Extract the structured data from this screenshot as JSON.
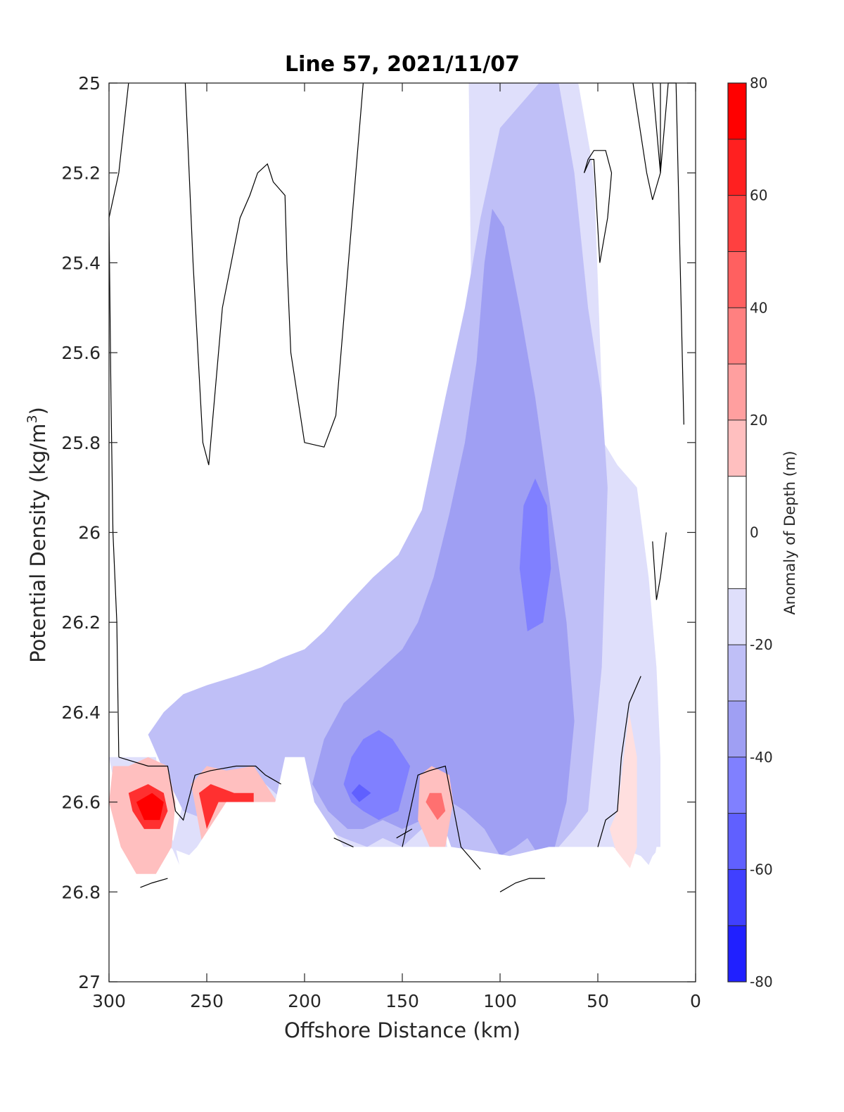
{
  "chart_data": {
    "type": "contourf",
    "title": "Line 57, 2021/11/07",
    "xlabel": "Offshore Distance (km)",
    "ylabel_main": "Potential Density (kg/m",
    "ylabel_sup": "3",
    "ylabel_close": ")",
    "xlim": [
      300,
      0
    ],
    "ylim": [
      25,
      27
    ],
    "y_reversed": true,
    "x_reversed": true,
    "xticks": [
      "300",
      "250",
      "200",
      "150",
      "100",
      "50",
      "0"
    ],
    "xtick_values": [
      300,
      250,
      200,
      150,
      100,
      50,
      0
    ],
    "yticks": [
      "25",
      "25.2",
      "25.4",
      "25.6",
      "25.8",
      "26",
      "26.2",
      "26.4",
      "26.6",
      "26.8",
      "27"
    ],
    "ytick_values": [
      25,
      25.2,
      25.4,
      25.6,
      25.8,
      26,
      26.2,
      26.4,
      26.6,
      26.8,
      27
    ],
    "zero_contour": "black line",
    "colorbar": {
      "label": "Anomaly of Depth (m)",
      "ticks": [
        "80",
        "60",
        "40",
        "20",
        "0",
        "-20",
        "-40",
        "-60",
        "-80"
      ],
      "tick_values": [
        80,
        60,
        40,
        20,
        0,
        -20,
        -40,
        -60,
        -80
      ],
      "levels": [
        80,
        70,
        60,
        50,
        40,
        30,
        20,
        10,
        -10,
        -20,
        -30,
        -40,
        -50,
        -60,
        -70,
        -80
      ],
      "colors": [
        "#ff0000",
        "#ff2020",
        "#ff4040",
        "#ff6060",
        "#ff8080",
        "#ff9f9f",
        "#ffbfbf",
        "#ffdfdf",
        "#ffffff",
        "#dfdffb",
        "#bfbff7",
        "#9f9ff3",
        "#8080ff",
        "#6060ff",
        "#4040ff",
        "#2020ff",
        "#0000ff"
      ]
    },
    "regions": [
      {
        "name": "band-10-20",
        "color": "#dfdffb",
        "x": [
          300,
          276,
          270,
          266,
          264,
          268,
          262,
          250,
          240,
          232,
          224,
          215,
          205,
          195,
          185,
          172,
          165,
          160,
          150,
          140,
          134,
          127,
          120,
          116,
          112,
          116,
          90,
          60,
          52,
          47,
          40,
          30,
          24,
          20,
          18,
          18,
          22,
          24,
          28,
          40,
          50,
          60,
          70,
          80,
          100,
          150,
          200,
          240,
          270,
          290,
          300
        ],
        "y": [
          26.5,
          26.5,
          26.66,
          26.7,
          26.74,
          26.7,
          26.6,
          26.58,
          26.58,
          26.6,
          26.52,
          26.52,
          26.5,
          26.6,
          26.58,
          26.64,
          26.66,
          26.64,
          26.66,
          26.6,
          26.5,
          26.7,
          26.7,
          26.68,
          26.6,
          25.0,
          25.0,
          25.0,
          25.2,
          25.8,
          25.85,
          25.9,
          26.1,
          26.3,
          26.5,
          26.7,
          26.72,
          26.74,
          26.72,
          26.7,
          26.72,
          26.7,
          26.72,
          26.72,
          26.74,
          26.72,
          26.72,
          26.75,
          26.7,
          26.72,
          26.5
        ]
      },
      {
        "name": "band-20-30",
        "color": "#bfbff7",
        "x": [
          280,
          270,
          262,
          250,
          238,
          230,
          220,
          210,
          200,
          190,
          180,
          168,
          160,
          150,
          140,
          133,
          125,
          120,
          110,
          100,
          90,
          80,
          70,
          62,
          55,
          48,
          45,
          48,
          55,
          62,
          70,
          80,
          90,
          100,
          110,
          118,
          128,
          140,
          152,
          165,
          178,
          190,
          200,
          212,
          222,
          235,
          250,
          262,
          272,
          280
        ],
        "y": [
          26.45,
          26.55,
          26.62,
          26.64,
          26.62,
          26.58,
          26.56,
          26.6,
          26.62,
          26.66,
          26.68,
          26.7,
          26.68,
          26.7,
          26.66,
          26.6,
          26.7,
          26.72,
          26.72,
          26.74,
          26.74,
          26.72,
          26.7,
          26.66,
          26.62,
          26.3,
          25.9,
          25.7,
          25.5,
          25.2,
          25.0,
          25.0,
          25.05,
          25.1,
          25.3,
          25.5,
          25.7,
          25.95,
          26.05,
          26.1,
          26.16,
          26.22,
          26.26,
          26.28,
          26.3,
          26.32,
          26.34,
          26.36,
          26.4,
          26.45
        ]
      },
      {
        "name": "band-30-40",
        "color": "#9f9ff3",
        "x": [
          196,
          188,
          178,
          170,
          160,
          150,
          140,
          132,
          125,
          118,
          108,
          100,
          92,
          86,
          80,
          72,
          66,
          62,
          66,
          74,
          82,
          90,
          98,
          104,
          108,
          112,
          118,
          126,
          134,
          142,
          150,
          160,
          170,
          180,
          190,
          196
        ],
        "y": [
          26.56,
          26.62,
          26.66,
          26.66,
          26.64,
          26.66,
          26.64,
          26.62,
          26.6,
          26.62,
          26.66,
          26.72,
          26.7,
          26.68,
          26.72,
          26.7,
          26.6,
          26.42,
          26.2,
          25.95,
          25.7,
          25.5,
          25.32,
          25.28,
          25.4,
          25.62,
          25.8,
          25.96,
          26.1,
          26.2,
          26.26,
          26.3,
          26.34,
          26.38,
          26.46,
          26.56
        ]
      },
      {
        "name": "band-40-50",
        "color": "#8080ff",
        "x": [
          170,
          162,
          152,
          146,
          155,
          162,
          170,
          176,
          180,
          176,
          170
        ],
        "y": [
          26.62,
          26.64,
          26.62,
          26.52,
          26.46,
          26.44,
          26.46,
          26.5,
          26.56,
          26.6,
          26.62
        ]
      },
      {
        "name": "band-40-50-core",
        "color": "#8080ff",
        "x": [
          86,
          78,
          74,
          76,
          82,
          88,
          90,
          86
        ],
        "y": [
          26.22,
          26.2,
          26.08,
          25.94,
          25.88,
          25.94,
          26.08,
          26.22
        ]
      },
      {
        "name": "band-50-60",
        "color": "#6060ff",
        "x": [
          172,
          166,
          172,
          176,
          172
        ],
        "y": [
          26.6,
          26.58,
          26.56,
          26.58,
          26.6
        ]
      },
      {
        "name": "band-pos-20-30",
        "color": "#ffbfbf",
        "x": [
          298,
          290,
          280,
          270,
          266,
          268,
          276,
          286,
          294,
          300,
          298
        ],
        "y": [
          26.52,
          26.52,
          26.5,
          26.52,
          26.6,
          26.7,
          26.76,
          26.76,
          26.7,
          26.6,
          26.52
        ]
      },
      {
        "name": "band-pos-60-70",
        "color": "#ff3030",
        "x": [
          290,
          280,
          272,
          270,
          274,
          282,
          288,
          290
        ],
        "y": [
          26.58,
          26.56,
          26.58,
          26.62,
          26.66,
          26.66,
          26.62,
          26.58
        ]
      },
      {
        "name": "band-pos-70-80",
        "color": "#ff0000",
        "x": [
          286,
          278,
          272,
          274,
          282,
          286
        ],
        "y": [
          26.6,
          26.58,
          26.6,
          26.64,
          26.64,
          26.6
        ]
      },
      {
        "name": "band-pos-250-outer",
        "color": "#ffbfbf",
        "x": [
          258,
          250,
          240,
          226,
          220,
          214,
          220,
          240,
          252,
          258
        ],
        "y": [
          26.56,
          26.52,
          26.53,
          26.52,
          26.56,
          26.6,
          26.6,
          26.6,
          26.7,
          26.56
        ]
      },
      {
        "name": "band-pos-250-inner",
        "color": "#ff3030",
        "x": [
          254,
          248,
          236,
          226,
          226,
          244,
          250,
          254
        ],
        "y": [
          26.58,
          26.56,
          26.58,
          26.58,
          26.6,
          26.6,
          26.66,
          26.58
        ]
      },
      {
        "name": "band-pos-135",
        "color": "#ffbfbf",
        "x": [
          141,
          135,
          126,
          124,
          128,
          136,
          142,
          141
        ],
        "y": [
          26.54,
          26.52,
          26.54,
          26.6,
          26.7,
          26.7,
          26.64,
          26.54
        ]
      },
      {
        "name": "band-pos-135-inner",
        "color": "#ff7070",
        "x": [
          136,
          130,
          128,
          132,
          138,
          136
        ],
        "y": [
          26.58,
          26.58,
          26.62,
          26.64,
          26.6,
          26.58
        ]
      },
      {
        "name": "band-pos-30",
        "color": "#ffdfdf",
        "x": [
          40,
          34,
          30,
          30,
          36,
          40,
          44,
          40
        ],
        "y": [
          26.62,
          26.4,
          26.5,
          26.7,
          26.78,
          26.72,
          26.66,
          26.62
        ]
      }
    ],
    "masks": [
      {
        "name": "mask-bottom",
        "x": [
          300,
          300,
          0,
          0,
          20,
          24,
          42,
          75,
          95,
          125,
          140,
          160,
          180,
          195,
          200,
          210,
          215,
          240,
          255,
          266,
          286,
          300
        ],
        "y": [
          26.76,
          27.0,
          27.0,
          26.7,
          26.7,
          26.8,
          26.7,
          26.7,
          26.72,
          26.7,
          26.7,
          26.7,
          26.7,
          26.6,
          26.5,
          26.5,
          26.6,
          26.6,
          26.7,
          26.75,
          26.78,
          26.76
        ]
      }
    ],
    "zero_contours": [
      {
        "x": [
          300,
          295,
          290
        ],
        "y": [
          25.3,
          25.2,
          25.0
        ]
      },
      {
        "x": [
          300,
          299,
          298,
          296,
          295,
          295
        ],
        "y": [
          25.3,
          25.7,
          26.0,
          26.2,
          26.5,
          26.5
        ]
      },
      {
        "x": [
          295,
          280,
          270,
          266,
          262,
          256,
          248,
          235,
          225,
          220,
          212
        ],
        "y": [
          26.5,
          26.52,
          26.52,
          26.62,
          26.64,
          26.54,
          26.53,
          26.52,
          26.52,
          26.54,
          26.56
        ]
      },
      {
        "x": [
          261,
          257,
          252,
          249,
          242,
          233,
          228,
          224,
          219,
          216,
          210,
          209,
          207,
          200,
          190,
          184,
          170
        ],
        "y": [
          25.0,
          25.4,
          25.8,
          25.85,
          25.5,
          25.3,
          25.25,
          25.2,
          25.18,
          25.22,
          25.25,
          25.4,
          25.6,
          25.8,
          25.81,
          25.74,
          25.0
        ]
      },
      {
        "x": [
          185,
          175
        ],
        "y": [
          26.68,
          26.7
        ]
      },
      {
        "x": [
          150,
          142,
          136,
          128,
          120,
          110
        ],
        "y": [
          26.7,
          26.54,
          26.53,
          26.52,
          26.7,
          26.75
        ]
      },
      {
        "x": [
          153,
          145
        ],
        "y": [
          26.68,
          26.66
        ]
      },
      {
        "x": [
          100,
          92,
          85,
          77
        ],
        "y": [
          26.8,
          26.78,
          26.77,
          26.77
        ]
      },
      {
        "x": [
          57,
          54,
          52,
          49,
          45,
          43,
          46,
          52,
          55,
          57
        ],
        "y": [
          25.2,
          25.17,
          25.17,
          25.4,
          25.3,
          25.2,
          25.15,
          25.15,
          25.17,
          25.2
        ]
      },
      {
        "x": [
          32,
          25,
          22,
          18,
          14,
          10,
          6
        ],
        "y": [
          25.0,
          25.2,
          25.26,
          25.2,
          25.0,
          25.0,
          25.76
        ]
      },
      {
        "x": [
          22,
          20,
          18,
          18
        ],
        "y": [
          25.0,
          25.1,
          25.2,
          25.0
        ]
      },
      {
        "x": [
          15,
          18,
          20,
          22
        ],
        "y": [
          26.0,
          26.1,
          26.15,
          26.02
        ]
      },
      {
        "x": [
          28,
          34,
          38,
          40,
          46,
          50
        ],
        "y": [
          26.32,
          26.38,
          26.5,
          26.62,
          26.64,
          26.7
        ]
      },
      {
        "x": [
          284,
          278,
          270
        ],
        "y": [
          26.79,
          26.78,
          26.77
        ]
      }
    ]
  }
}
